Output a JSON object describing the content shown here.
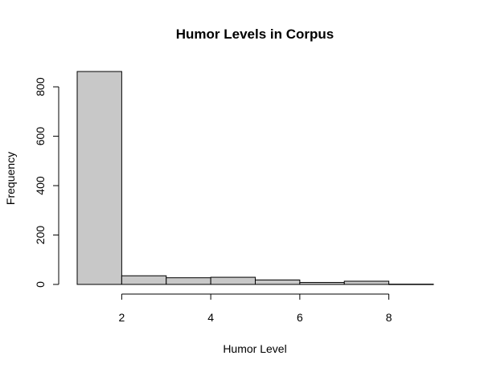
{
  "chart_data": {
    "type": "bar",
    "title": "Humor Levels in Corpus",
    "xlabel": "Humor Level",
    "ylabel": "Frequency",
    "bins": [
      {
        "from": 1,
        "to": 2,
        "count": 862
      },
      {
        "from": 2,
        "to": 3,
        "count": 35
      },
      {
        "from": 3,
        "to": 4,
        "count": 27
      },
      {
        "from": 4,
        "to": 5,
        "count": 29
      },
      {
        "from": 5,
        "to": 6,
        "count": 18
      },
      {
        "from": 6,
        "to": 7,
        "count": 8
      },
      {
        "from": 7,
        "to": 8,
        "count": 13
      },
      {
        "from": 8,
        "to": 9,
        "count": 1
      }
    ],
    "xlim": [
      1,
      9
    ],
    "ylim": [
      0,
      862
    ],
    "x_ticks": [
      2,
      4,
      6,
      8
    ],
    "y_ticks": [
      0,
      200,
      400,
      600,
      800
    ],
    "bar_color": "#c8c8c8",
    "grid": false
  }
}
